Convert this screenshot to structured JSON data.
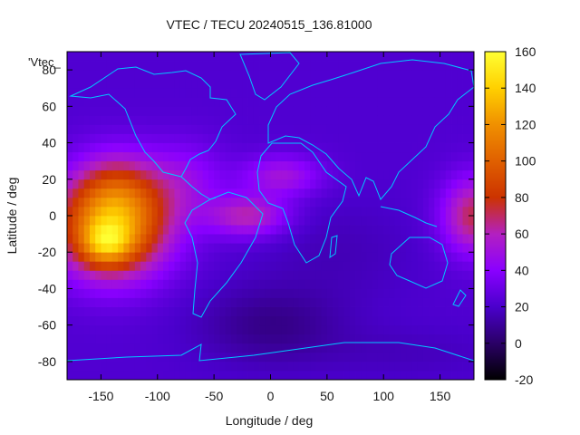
{
  "chart_data": {
    "type": "heatmap",
    "title": "VTEC / TECU 20240515_136.81000",
    "xlabel": "Longitude / deg",
    "ylabel": "Latitude / deg",
    "xlim": [
      -180,
      180
    ],
    "ylim": [
      -90,
      90
    ],
    "x_ticks": [
      -150,
      -100,
      -50,
      0,
      50,
      100,
      150
    ],
    "y_ticks": [
      -80,
      -60,
      -40,
      -20,
      0,
      20,
      40,
      60,
      80
    ],
    "x_tick_labels": [
      "-150",
      "-100",
      "-50",
      "0",
      "50",
      "100",
      "150"
    ],
    "y_tick_labels": [
      "-80",
      "-60",
      "-40",
      "-20",
      "0",
      "20",
      "40",
      "60",
      "80"
    ],
    "colorbar": {
      "min": -20,
      "max": 160,
      "ticks": [
        -20,
        0,
        20,
        40,
        60,
        80,
        100,
        120,
        140,
        160
      ],
      "tick_labels": [
        "-20",
        "0",
        "20",
        "40",
        "60",
        "80",
        "100",
        "120",
        "140",
        "160"
      ],
      "palette": [
        "#000000",
        "#2a0066",
        "#4a00cc",
        "#8a00ff",
        "#b320c0",
        "#cc3300",
        "#e06000",
        "#f09000",
        "#ffd000",
        "#ffff33"
      ]
    },
    "legend_label": "'Vtec_",
    "coastline_color": "#00c8ff",
    "blobs": [
      {
        "lon": -140,
        "lat": -5,
        "value": 100,
        "spread_lon": 35,
        "spread_lat": 20
      },
      {
        "lon": -145,
        "lat": -15,
        "value": 45,
        "spread_lon": 15,
        "spread_lat": 8
      },
      {
        "lon": -135,
        "lat": 15,
        "value": 25,
        "spread_lon": 25,
        "spread_lat": 15
      },
      {
        "lon": -20,
        "lat": 0,
        "value": 40,
        "spread_lon": 25,
        "spread_lat": 8
      },
      {
        "lon": 10,
        "lat": 22,
        "value": 30,
        "spread_lon": 25,
        "spread_lat": 8
      },
      {
        "lon": -75,
        "lat": 20,
        "value": 20,
        "spread_lon": 25,
        "spread_lat": 15
      },
      {
        "lon": 180,
        "lat": 0,
        "value": 50,
        "spread_lon": 20,
        "spread_lat": 15
      },
      {
        "lon": 0,
        "lat": -60,
        "value": -15,
        "spread_lon": 45,
        "spread_lat": 15
      },
      {
        "lon": 60,
        "lat": -20,
        "value": -6,
        "spread_lon": 50,
        "spread_lat": 20
      },
      {
        "lon": 120,
        "lat": -75,
        "value": -5,
        "spread_lon": 60,
        "spread_lat": 10
      }
    ],
    "background_value": 22
  }
}
